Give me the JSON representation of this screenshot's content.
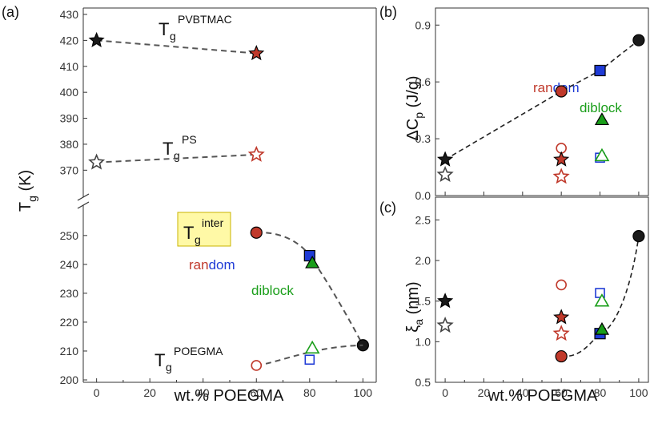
{
  "figure": {
    "panel_labels": {
      "a": "(a)",
      "b": "(b)",
      "c": "(c)"
    },
    "shared_xlabel": "wt.% POEGMA"
  },
  "colors": {
    "red": "#c0392b",
    "blue": "#1f3bd6",
    "green": "#1a9e1a",
    "dark": "#1a1a1a",
    "gray": "#444444",
    "dashed": "#555555",
    "highlight": "#fff9a6",
    "highlight_border": "#c9b400"
  },
  "chart_data": [
    {
      "id": "a",
      "type": "scatter",
      "title": "",
      "xlabel": "wt.% POEGMA",
      "ylabel": "T_g (K)",
      "xlim": [
        -5,
        105
      ],
      "xticks": [
        0,
        20,
        40,
        60,
        80,
        100
      ],
      "broken_axis": true,
      "upper_segment": {
        "ylim": [
          363,
          430
        ],
        "yticks": [
          370,
          380,
          390,
          400,
          410,
          420,
          430
        ]
      },
      "lower_segment": {
        "ylim": [
          200,
          258
        ],
        "yticks": [
          200,
          210,
          220,
          230,
          240,
          250
        ]
      },
      "labels": {
        "pvbtmac": {
          "main": "T",
          "sub": "g",
          "sup": "PVBTMAC"
        },
        "ps": {
          "main": "T",
          "sub": "g",
          "sup": "PS"
        },
        "inter": {
          "main": "T",
          "sub": "g",
          "sup": "inter"
        },
        "poegma": {
          "main": "T",
          "sub": "g",
          "sup": "POEGMA"
        }
      },
      "annotations": [
        {
          "text": "ran",
          "color": "red"
        },
        {
          "text": "dom",
          "color": "blue"
        },
        {
          "text": "diblock",
          "color": "green"
        }
      ],
      "series": [
        {
          "name": "Tg PVBTMAC",
          "segment": "upper",
          "dashed": true,
          "points": [
            {
              "x": 0,
              "y": 420,
              "marker": "star-filled-dark"
            },
            {
              "x": 60,
              "y": 415,
              "marker": "star-filled-red"
            }
          ]
        },
        {
          "name": "Tg PS",
          "segment": "upper",
          "dashed": true,
          "points": [
            {
              "x": 0,
              "y": 373,
              "marker": "star-open-gray"
            },
            {
              "x": 60,
              "y": 376,
              "marker": "star-open-red"
            }
          ]
        },
        {
          "name": "Tg inter",
          "segment": "lower",
          "dashed": true,
          "curve": "inter",
          "points": [
            {
              "x": 60,
              "y": 251,
              "marker": "circle-filled-red"
            },
            {
              "x": 80,
              "y": 243,
              "marker": "square-filled-blue"
            },
            {
              "x": 81,
              "y": 240.5,
              "marker": "triangle-filled-green"
            },
            {
              "x": 100,
              "y": 212,
              "marker": "circle-filled-black"
            }
          ]
        },
        {
          "name": "Tg POEGMA",
          "segment": "lower",
          "dashed": true,
          "curve": "poegma",
          "points": [
            {
              "x": 60,
              "y": 205,
              "marker": "circle-open-red"
            },
            {
              "x": 80,
              "y": 207,
              "marker": "square-open-blue"
            },
            {
              "x": 81,
              "y": 211,
              "marker": "triangle-open-green"
            }
          ]
        }
      ]
    },
    {
      "id": "b",
      "type": "scatter",
      "title": "",
      "xlabel": "",
      "ylabel": "ΔC_p (J/g)",
      "xlim": [
        -5,
        105
      ],
      "ylim": [
        0.0,
        0.99
      ],
      "yticks": [
        0.0,
        0.3,
        0.6,
        0.9
      ],
      "ytick_labels": [
        "0.0",
        "0.3",
        "0.6",
        "0.9"
      ],
      "labels": {
        "main": "ΔC",
        "sub": "p",
        "unit": " (J/g)"
      },
      "annotations": [
        {
          "text": "ran",
          "color": "red"
        },
        {
          "text": "dom",
          "color": "blue"
        },
        {
          "text": "diblock",
          "color": "green"
        }
      ],
      "fit_line": [
        {
          "x": 0,
          "y": 0.19
        },
        {
          "x": 60,
          "y": 0.55
        },
        {
          "x": 80,
          "y": 0.66
        },
        {
          "x": 100,
          "y": 0.82
        }
      ],
      "series": [
        {
          "name": "filled",
          "points": [
            {
              "x": 0,
              "y": 0.19,
              "marker": "star-filled-dark"
            },
            {
              "x": 60,
              "y": 0.55,
              "marker": "circle-filled-red"
            },
            {
              "x": 80,
              "y": 0.66,
              "marker": "square-filled-blue"
            },
            {
              "x": 81,
              "y": 0.4,
              "marker": "triangle-filled-green"
            },
            {
              "x": 100,
              "y": 0.82,
              "marker": "circle-filled-black"
            }
          ]
        },
        {
          "name": "secondary",
          "points": [
            {
              "x": 0,
              "y": 0.11,
              "marker": "star-open-gray"
            },
            {
              "x": 60,
              "y": 0.25,
              "marker": "circle-open-red"
            },
            {
              "x": 60,
              "y": 0.19,
              "marker": "star-filled-red"
            },
            {
              "x": 60,
              "y": 0.1,
              "marker": "star-open-red"
            },
            {
              "x": 80,
              "y": 0.2,
              "marker": "square-open-blue"
            },
            {
              "x": 81,
              "y": 0.21,
              "marker": "triangle-open-green"
            }
          ]
        }
      ]
    },
    {
      "id": "c",
      "type": "scatter",
      "title": "",
      "xlabel": "wt.% POEGMA",
      "ylabel": "ξ_a (nm)",
      "xlim": [
        -5,
        105
      ],
      "ylim": [
        0.5,
        2.78
      ],
      "yticks": [
        0.5,
        1.0,
        1.5,
        2.0,
        2.5
      ],
      "ytick_labels": [
        "0.5",
        "1.0",
        "1.5",
        "2.0",
        "2.5"
      ],
      "labels": {
        "main": "ξ",
        "sub": "a",
        "unit": " (nm)"
      },
      "fit_line": [
        {
          "x": 60,
          "y": 0.82
        },
        {
          "x": 80,
          "y": 1.1
        },
        {
          "x": 100,
          "y": 2.3
        }
      ],
      "series": [
        {
          "name": "points",
          "points": [
            {
              "x": 0,
              "y": 1.5,
              "marker": "star-filled-dark"
            },
            {
              "x": 0,
              "y": 1.2,
              "marker": "star-open-gray"
            },
            {
              "x": 60,
              "y": 1.7,
              "marker": "circle-open-red"
            },
            {
              "x": 60,
              "y": 1.3,
              "marker": "star-filled-red"
            },
            {
              "x": 60,
              "y": 1.1,
              "marker": "star-open-red"
            },
            {
              "x": 60,
              "y": 0.82,
              "marker": "circle-filled-red"
            },
            {
              "x": 80,
              "y": 1.6,
              "marker": "square-open-blue"
            },
            {
              "x": 81,
              "y": 1.5,
              "marker": "triangle-open-green"
            },
            {
              "x": 80,
              "y": 1.1,
              "marker": "square-filled-blue"
            },
            {
              "x": 81,
              "y": 1.15,
              "marker": "triangle-filled-green"
            },
            {
              "x": 100,
              "y": 2.3,
              "marker": "circle-filled-black"
            }
          ]
        }
      ]
    }
  ],
  "xtick_labels": [
    "0",
    "20",
    "40",
    "60",
    "80",
    "100"
  ]
}
